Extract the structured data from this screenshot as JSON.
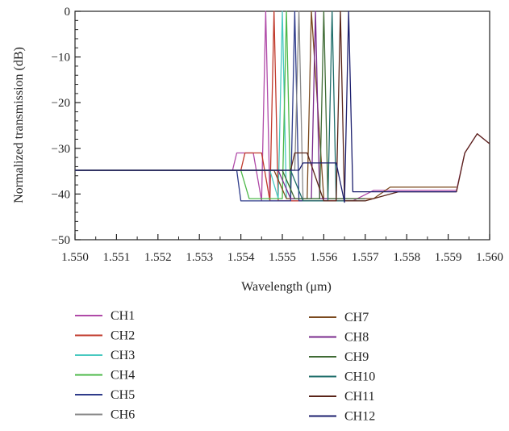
{
  "chart_data": {
    "type": "line",
    "title": "",
    "xlabel": "Wavelength (μm)",
    "ylabel": "Normalized transmission (dB)",
    "xlim": [
      1.55,
      1.56
    ],
    "ylim": [
      -50,
      0
    ],
    "xticks": [
      "1.550",
      "1.551",
      "1.552",
      "1.553",
      "1.554",
      "1.555",
      "1.556",
      "1.557",
      "1.558",
      "1.559",
      "1.560"
    ],
    "yticks": [
      "0",
      "−10",
      "−20",
      "−30",
      "−40",
      "−50"
    ],
    "grid": false,
    "legend_position": "bottom",
    "series": [
      {
        "name": "CH1",
        "color": "#b04aa8",
        "x": [
          1.55,
          1.5538,
          1.5539,
          1.5543,
          1.5545,
          1.5546,
          1.5547,
          1.5549,
          1.555,
          1.5553,
          1.556,
          1.5567,
          1.5572,
          1.558,
          1.5592,
          1.5594,
          1.5597,
          1.56
        ],
        "y": [
          -34.8,
          -34.8,
          -31,
          -31,
          -41.5,
          0,
          -41.5,
          -41.5,
          -41.5,
          -41.5,
          -41.5,
          -41.5,
          -39.2,
          -39.2,
          -39.2,
          -31,
          -26.8,
          -29
        ]
      },
      {
        "name": "CH2",
        "color": "#c0392b",
        "x": [
          1.55,
          1.554,
          1.5541,
          1.5545,
          1.5547,
          1.5548,
          1.5549,
          1.5552,
          1.556,
          1.5566,
          1.5568
        ],
        "y": [
          -34.8,
          -34.8,
          -31,
          -31,
          -41.5,
          0,
          -41.5,
          -41.5,
          -41.5,
          -41.5,
          -41.5
        ]
      },
      {
        "name": "CH3",
        "color": "#48c9c0",
        "x": [
          1.55,
          1.5542,
          1.5543,
          1.5547,
          1.5549,
          1.555,
          1.5551,
          1.5554,
          1.556,
          1.5566
        ],
        "y": [
          -34.8,
          -34.8,
          -34.8,
          -34.8,
          -41,
          0,
          -41,
          -41,
          -41,
          -41
        ]
      },
      {
        "name": "CH4",
        "color": "#4cb848",
        "x": [
          1.55,
          1.554,
          1.5542,
          1.5546,
          1.555,
          1.5551,
          1.5552,
          1.5555,
          1.556
        ],
        "y": [
          -34.8,
          -34.8,
          -41,
          -41,
          -41,
          0,
          -41,
          -41,
          -41
        ]
      },
      {
        "name": "CH5",
        "color": "#2e3b8a",
        "x": [
          1.55,
          1.5539,
          1.554,
          1.5544,
          1.5548,
          1.5552,
          1.5553,
          1.5554,
          1.5556,
          1.556
        ],
        "y": [
          -34.8,
          -34.8,
          -41.5,
          -41.5,
          -41.5,
          -41.5,
          0,
          -41.5,
          -41.5,
          -41.5
        ]
      },
      {
        "name": "CH6",
        "color": "#8a8a8a",
        "x": [
          1.55,
          1.5538,
          1.554,
          1.5545,
          1.555,
          1.5553,
          1.5554,
          1.5555,
          1.556
        ],
        "y": [
          -34.8,
          -34.8,
          -34.8,
          -34.8,
          -34.8,
          -34.8,
          0,
          -41.5,
          -41.5
        ]
      },
      {
        "name": "CH7",
        "color": "#7b4a1e",
        "x": [
          1.55,
          1.5548,
          1.5551,
          1.5554,
          1.5556,
          1.5557,
          1.556,
          1.5572,
          1.5576,
          1.5592
        ],
        "y": [
          -34.8,
          -34.8,
          -41,
          -41,
          -41,
          0,
          -41,
          -41,
          -38.5,
          -38.5
        ]
      },
      {
        "name": "CH8",
        "color": "#7a2b8c",
        "x": [
          1.55,
          1.5549,
          1.5552,
          1.5555,
          1.5557,
          1.5558,
          1.5559,
          1.5565,
          1.557
        ],
        "y": [
          -34.8,
          -34.8,
          -41,
          -41,
          -41,
          0,
          -41,
          -41,
          -41
        ]
      },
      {
        "name": "CH9",
        "color": "#3f6b34",
        "x": [
          1.55,
          1.555,
          1.5553,
          1.5557,
          1.5559,
          1.556,
          1.5561,
          1.5566,
          1.557
        ],
        "y": [
          -34.8,
          -34.8,
          -41,
          -41,
          -41,
          0,
          -41,
          -41,
          -41
        ]
      },
      {
        "name": "CH10",
        "color": "#1f6e6b",
        "x": [
          1.55,
          1.5552,
          1.5555,
          1.5559,
          1.5561,
          1.5562,
          1.5563,
          1.5566,
          1.557
        ],
        "y": [
          -34.8,
          -34.8,
          -41.5,
          -41.5,
          -41.5,
          0,
          -41.5,
          -41.5,
          -41.5
        ]
      },
      {
        "name": "CH11",
        "color": "#5a2418",
        "x": [
          1.55,
          1.5552,
          1.5553,
          1.5556,
          1.556,
          1.5563,
          1.5564,
          1.5565,
          1.557,
          1.5578,
          1.5592,
          1.5594,
          1.5597,
          1.56
        ],
        "y": [
          -34.8,
          -34.8,
          -31,
          -31,
          -41.5,
          -41.5,
          0,
          -41.5,
          -41.5,
          -39.5,
          -39.5,
          -31,
          -26.8,
          -29
        ]
      },
      {
        "name": "CH12",
        "color": "#1c1f6e",
        "x": [
          1.55,
          1.5554,
          1.5555,
          1.5563,
          1.5565,
          1.5566,
          1.5567,
          1.557,
          1.558,
          1.5592
        ],
        "y": [
          -34.8,
          -34.8,
          -33.2,
          -33.2,
          -41.8,
          0,
          -39.5,
          -39.5,
          -39.5,
          -39.5
        ]
      }
    ]
  }
}
